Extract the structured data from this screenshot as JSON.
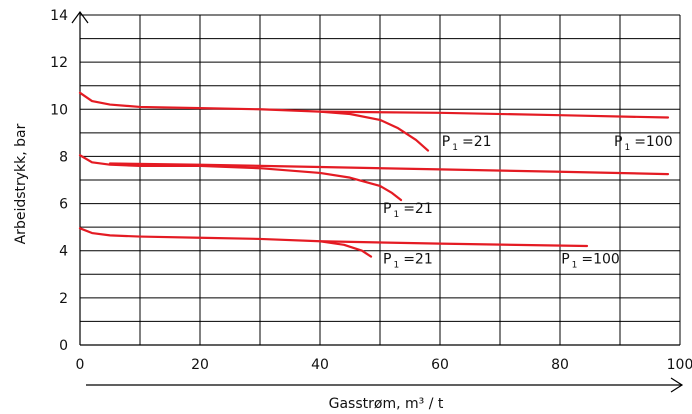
{
  "chart_data": {
    "type": "line",
    "title": "",
    "xlabel": "Gasstrøm, m³ / t",
    "ylabel": "Arbeidstrykk, bar",
    "xlim": [
      0,
      100
    ],
    "ylim": [
      0,
      14
    ],
    "x_ticks": [
      "0",
      "20",
      "40",
      "60",
      "80",
      "100"
    ],
    "y_ticks": [
      "0",
      "2",
      "4",
      "6",
      "8",
      "10",
      "12",
      "14"
    ],
    "grid": true,
    "legend": "none",
    "line_color": "#e41b23",
    "series": [
      {
        "x": [
          0,
          2,
          5,
          10,
          20,
          30,
          40,
          45,
          50,
          53,
          56,
          58
        ],
        "y": [
          10.7,
          10.35,
          10.2,
          10.1,
          10.05,
          10.0,
          9.9,
          9.8,
          9.55,
          9.2,
          8.7,
          8.25
        ]
      },
      {
        "x": [
          40,
          60,
          80,
          98
        ],
        "y": [
          9.9,
          9.85,
          9.75,
          9.65
        ]
      },
      {
        "x": [
          0,
          2,
          5,
          10,
          20,
          30,
          40,
          45,
          50,
          52,
          53.5
        ],
        "y": [
          8.05,
          7.75,
          7.65,
          7.6,
          7.6,
          7.5,
          7.3,
          7.1,
          6.75,
          6.45,
          6.15
        ]
      },
      {
        "x": [
          5,
          20,
          40,
          60,
          80,
          98
        ],
        "y": [
          7.7,
          7.65,
          7.55,
          7.45,
          7.35,
          7.25
        ]
      },
      {
        "x": [
          0,
          2,
          5,
          10,
          20,
          30,
          40,
          44,
          47,
          48.5
        ],
        "y": [
          4.95,
          4.75,
          4.65,
          4.6,
          4.55,
          4.5,
          4.4,
          4.25,
          4.0,
          3.75
        ]
      },
      {
        "x": [
          40,
          60,
          84.5
        ],
        "y": [
          4.4,
          4.3,
          4.2
        ]
      }
    ],
    "annotations": [
      {
        "label": "P",
        "sub": "1",
        "suffix": "=21",
        "x": 60.3,
        "y": 8.45
      },
      {
        "label": "P",
        "sub": "1",
        "suffix": "=100",
        "x": 89,
        "y": 8.45
      },
      {
        "label": "P",
        "sub": "1",
        "suffix": "=21",
        "x": 50.5,
        "y": 5.6
      },
      {
        "label": "P",
        "sub": "1",
        "suffix": "=21",
        "x": 50.5,
        "y": 3.45
      },
      {
        "label": "P",
        "sub": "1",
        "suffix": "=100",
        "x": 80.2,
        "y": 3.45
      }
    ]
  }
}
